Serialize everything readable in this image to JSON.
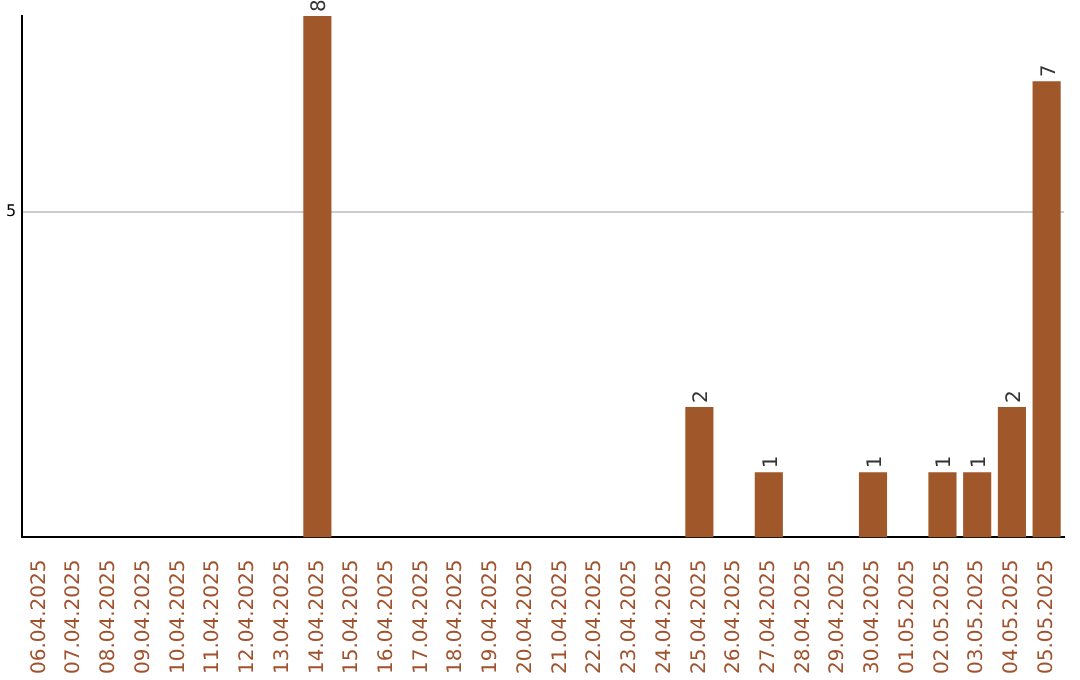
{
  "chart_data": {
    "type": "bar",
    "categories": [
      "06.04.2025",
      "07.04.2025",
      "08.04.2025",
      "09.04.2025",
      "10.04.2025",
      "11.04.2025",
      "12.04.2025",
      "13.04.2025",
      "14.04.2025",
      "15.04.2025",
      "16.04.2025",
      "17.04.2025",
      "18.04.2025",
      "19.04.2025",
      "20.04.2025",
      "21.04.2025",
      "22.04.2025",
      "23.04.2025",
      "24.04.2025",
      "25.04.2025",
      "26.04.2025",
      "27.04.2025",
      "28.04.2025",
      "29.04.2025",
      "30.04.2025",
      "01.05.2025",
      "02.05.2025",
      "03.05.2025",
      "04.05.2025",
      "05.05.2025"
    ],
    "values": [
      0,
      0,
      0,
      0,
      0,
      0,
      0,
      0,
      8,
      0,
      0,
      0,
      0,
      0,
      0,
      0,
      0,
      0,
      0,
      2,
      0,
      1,
      0,
      0,
      1,
      0,
      1,
      1,
      2,
      7
    ],
    "color": "#a0582a",
    "value_labels": [
      null,
      null,
      null,
      null,
      null,
      null,
      null,
      null,
      "8",
      null,
      null,
      null,
      null,
      null,
      null,
      null,
      null,
      null,
      null,
      "2",
      null,
      "1",
      null,
      null,
      "1",
      null,
      "1",
      "1",
      "2",
      "7"
    ],
    "ylim": [
      0,
      8
    ],
    "yticks": [
      5
    ],
    "grid": "y",
    "legend": false
  }
}
